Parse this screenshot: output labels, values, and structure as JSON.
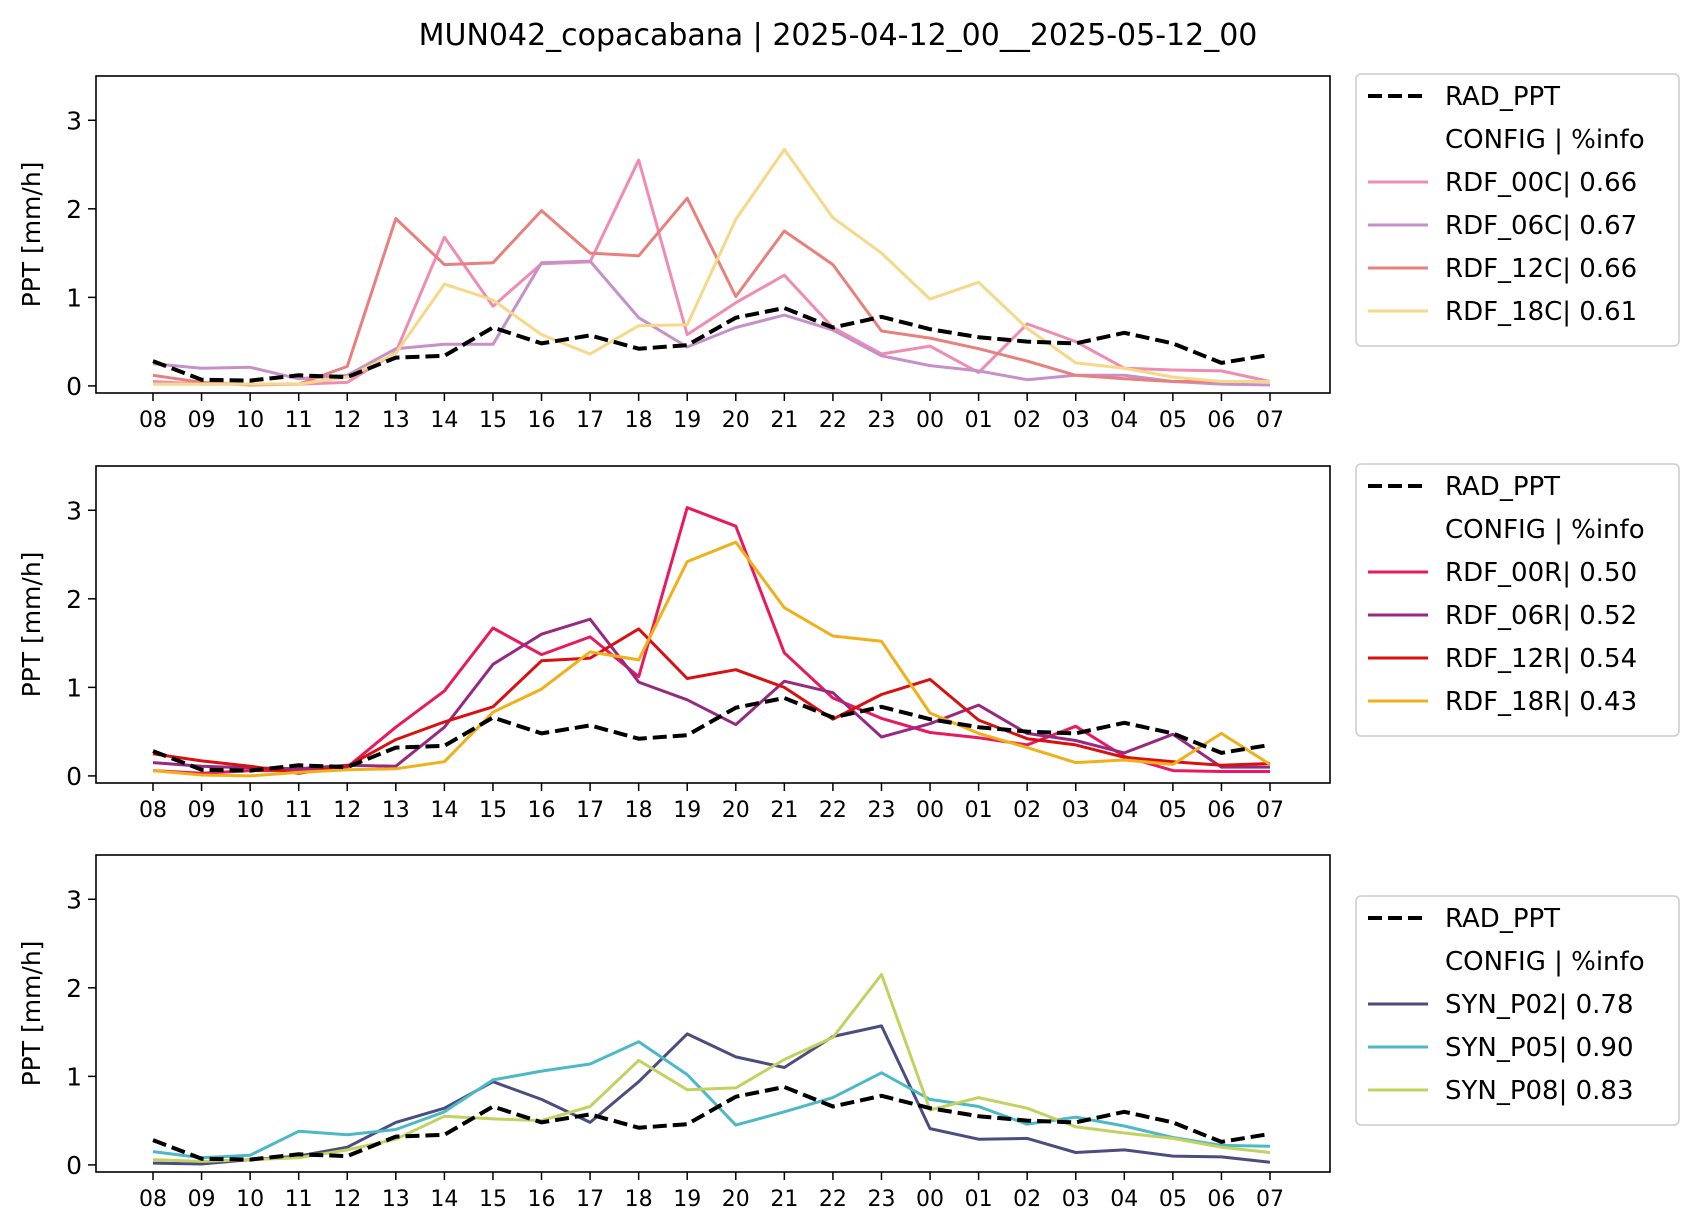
{
  "title": "MUN042_copacabana | 2025-04-12_00__2025-05-12_00",
  "chart_data": [
    {
      "type": "line",
      "categories": [
        "08",
        "09",
        "10",
        "11",
        "12",
        "13",
        "14",
        "15",
        "16",
        "17",
        "18",
        "19",
        "20",
        "21",
        "22",
        "23",
        "00",
        "01",
        "02",
        "03",
        "04",
        "05",
        "06",
        "07"
      ],
      "ylabel": "PPT [mm/h]",
      "ylim": [
        -0.08,
        3.5
      ],
      "yticks": [
        "0",
        "1",
        "2",
        "3"
      ],
      "grid": false,
      "legend_position": "outside-right",
      "legend_header": "CONFIG  | %info",
      "series": [
        {
          "name": "RAD_PPT",
          "color": "#000000",
          "dashed": true,
          "values": [
            0.28,
            0.07,
            0.06,
            0.12,
            0.1,
            0.32,
            0.34,
            0.66,
            0.48,
            0.57,
            0.42,
            0.46,
            0.77,
            0.88,
            0.66,
            0.78,
            0.64,
            0.55,
            0.5,
            0.48,
            0.6,
            0.48,
            0.26,
            0.35
          ]
        },
        {
          "name": "RDF_00C| 0.66",
          "color": "#f08cb4",
          "dashed": false,
          "values": [
            0.05,
            0.02,
            0.02,
            0.02,
            0.04,
            0.38,
            1.68,
            0.9,
            1.38,
            1.4,
            2.55,
            0.58,
            0.94,
            1.25,
            0.66,
            0.36,
            0.45,
            0.15,
            0.7,
            0.5,
            0.2,
            0.18,
            0.17,
            0.05
          ]
        },
        {
          "name": "RDF_06C| 0.67",
          "color": "#c691c8",
          "dashed": false,
          "values": [
            0.25,
            0.2,
            0.21,
            0.08,
            0.12,
            0.42,
            0.47,
            0.47,
            1.39,
            1.41,
            0.77,
            0.44,
            0.66,
            0.8,
            0.63,
            0.34,
            0.23,
            0.17,
            0.07,
            0.12,
            0.12,
            0.05,
            0.02,
            0.01
          ]
        },
        {
          "name": "RDF_12C| 0.66",
          "color": "#e8807e",
          "dashed": false,
          "values": [
            0.12,
            0.04,
            0.01,
            0.02,
            0.22,
            1.89,
            1.37,
            1.39,
            1.98,
            1.5,
            1.47,
            2.12,
            1.01,
            1.75,
            1.37,
            0.62,
            0.54,
            0.42,
            0.28,
            0.12,
            0.08,
            0.05,
            0.05,
            0.05
          ]
        },
        {
          "name": "RDF_18C| 0.61",
          "color": "#f5d888",
          "dashed": false,
          "values": [
            0.02,
            0.02,
            0.02,
            0.02,
            0.1,
            0.37,
            1.15,
            0.97,
            0.58,
            0.36,
            0.68,
            0.69,
            1.88,
            2.67,
            1.9,
            1.5,
            0.98,
            1.17,
            0.65,
            0.26,
            0.2,
            0.1,
            0.05,
            0.05
          ]
        }
      ]
    },
    {
      "type": "line",
      "categories": [
        "08",
        "09",
        "10",
        "11",
        "12",
        "13",
        "14",
        "15",
        "16",
        "17",
        "18",
        "19",
        "20",
        "21",
        "22",
        "23",
        "00",
        "01",
        "02",
        "03",
        "04",
        "05",
        "06",
        "07"
      ],
      "ylabel": "PPT [mm/h]",
      "ylim": [
        -0.08,
        3.5
      ],
      "yticks": [
        "0",
        "1",
        "2",
        "3"
      ],
      "grid": false,
      "legend_position": "outside-right",
      "legend_header": "CONFIG  | %info",
      "series": [
        {
          "name": "RAD_PPT",
          "color": "#000000",
          "dashed": true,
          "values": [
            0.28,
            0.07,
            0.06,
            0.12,
            0.1,
            0.32,
            0.34,
            0.66,
            0.48,
            0.57,
            0.42,
            0.46,
            0.77,
            0.88,
            0.66,
            0.78,
            0.64,
            0.55,
            0.5,
            0.48,
            0.6,
            0.48,
            0.26,
            0.35
          ]
        },
        {
          "name": "RDF_00R| 0.50",
          "color": "#e8195e",
          "dashed": false,
          "values": [
            0.06,
            0.03,
            0.06,
            0.06,
            0.1,
            0.55,
            0.96,
            1.67,
            1.37,
            1.57,
            1.12,
            3.03,
            2.82,
            1.39,
            0.88,
            0.65,
            0.49,
            0.43,
            0.35,
            0.56,
            0.22,
            0.06,
            0.05,
            0.05
          ]
        },
        {
          "name": "RDF_06R| 0.52",
          "color": "#962a82",
          "dashed": false,
          "values": [
            0.15,
            0.11,
            0.09,
            0.08,
            0.12,
            0.11,
            0.55,
            1.26,
            1.6,
            1.77,
            1.06,
            0.86,
            0.58,
            1.07,
            0.94,
            0.44,
            0.59,
            0.8,
            0.48,
            0.4,
            0.26,
            0.47,
            0.1,
            0.1
          ]
        },
        {
          "name": "RDF_12R| 0.54",
          "color": "#d81010",
          "dashed": false,
          "values": [
            0.25,
            0.17,
            0.11,
            0.03,
            0.11,
            0.41,
            0.61,
            0.78,
            1.3,
            1.33,
            1.66,
            1.1,
            1.2,
            1.0,
            0.64,
            0.92,
            1.09,
            0.63,
            0.42,
            0.35,
            0.21,
            0.16,
            0.12,
            0.14
          ]
        },
        {
          "name": "RDF_18R| 0.43",
          "color": "#f0b019",
          "dashed": false,
          "values": [
            0.06,
            0.01,
            0.0,
            0.04,
            0.07,
            0.08,
            0.16,
            0.72,
            0.98,
            1.4,
            1.31,
            2.42,
            2.64,
            1.9,
            1.58,
            1.52,
            0.71,
            0.48,
            0.32,
            0.15,
            0.18,
            0.13,
            0.48,
            0.13
          ]
        }
      ]
    },
    {
      "type": "line",
      "categories": [
        "08",
        "09",
        "10",
        "11",
        "12",
        "13",
        "14",
        "15",
        "16",
        "17",
        "18",
        "19",
        "20",
        "21",
        "22",
        "23",
        "00",
        "01",
        "02",
        "03",
        "04",
        "05",
        "06",
        "07"
      ],
      "ylabel": "PPT [mm/h]",
      "ylim": [
        -0.08,
        3.5
      ],
      "yticks": [
        "0",
        "1",
        "2",
        "3"
      ],
      "grid": false,
      "legend_position": "outside-right",
      "legend_header": "CONFIG  | %info",
      "series": [
        {
          "name": "RAD_PPT",
          "color": "#000000",
          "dashed": true,
          "values": [
            0.28,
            0.07,
            0.06,
            0.12,
            0.1,
            0.32,
            0.34,
            0.66,
            0.48,
            0.57,
            0.42,
            0.46,
            0.77,
            0.88,
            0.66,
            0.78,
            0.64,
            0.55,
            0.5,
            0.48,
            0.6,
            0.48,
            0.26,
            0.35
          ]
        },
        {
          "name": "SYN_P02| 0.78",
          "color": "#4b4d7e",
          "dashed": false,
          "values": [
            0.02,
            0.01,
            0.06,
            0.1,
            0.2,
            0.48,
            0.64,
            0.94,
            0.74,
            0.48,
            0.94,
            1.48,
            1.22,
            1.1,
            1.45,
            1.57,
            0.41,
            0.29,
            0.3,
            0.14,
            0.17,
            0.1,
            0.09,
            0.03
          ]
        },
        {
          "name": "SYN_P05| 0.90",
          "color": "#4db8c6",
          "dashed": false,
          "values": [
            0.15,
            0.08,
            0.11,
            0.38,
            0.34,
            0.4,
            0.6,
            0.96,
            1.06,
            1.14,
            1.39,
            1.02,
            0.45,
            0.6,
            0.76,
            1.04,
            0.74,
            0.66,
            0.46,
            0.54,
            0.44,
            0.31,
            0.22,
            0.21
          ]
        },
        {
          "name": "SYN_P08| 0.83",
          "color": "#c3d160",
          "dashed": false,
          "values": [
            0.06,
            0.04,
            0.06,
            0.08,
            0.17,
            0.29,
            0.55,
            0.52,
            0.5,
            0.66,
            1.18,
            0.85,
            0.87,
            1.19,
            1.44,
            2.15,
            0.62,
            0.76,
            0.64,
            0.43,
            0.36,
            0.3,
            0.2,
            0.14
          ]
        }
      ]
    }
  ]
}
